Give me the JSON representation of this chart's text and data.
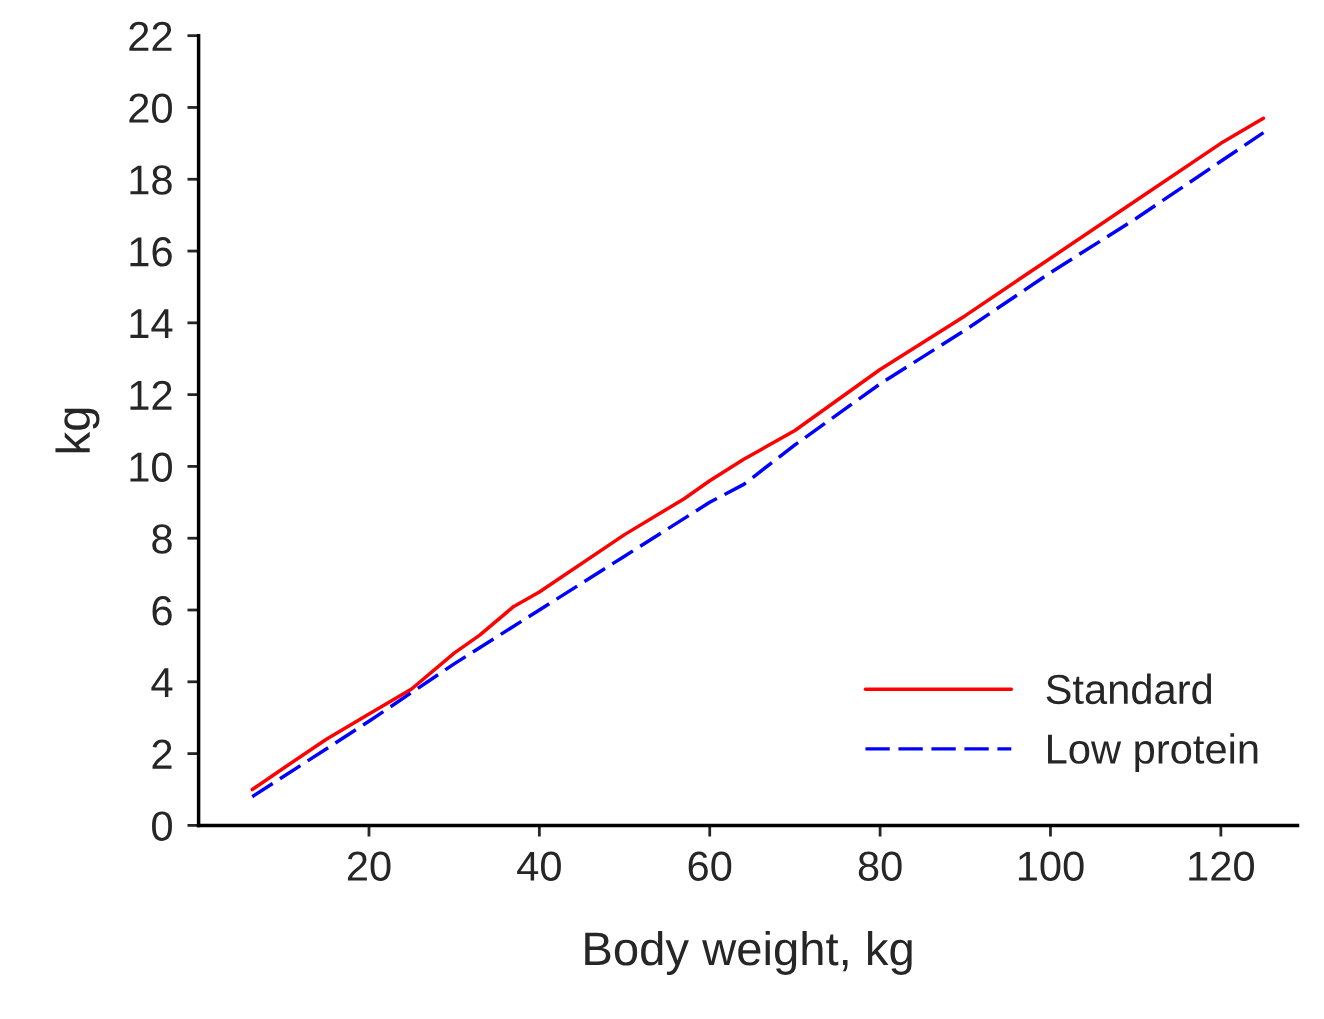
{
  "chart_data": {
    "type": "line",
    "xlabel": "Body weight, kg",
    "ylabel": "kg",
    "xlim": [
      0,
      129
    ],
    "xticks": [
      20,
      40,
      60,
      80,
      100,
      120
    ],
    "ylim": [
      0,
      22
    ],
    "yticks": [
      0,
      2,
      4,
      6,
      8,
      10,
      12,
      14,
      16,
      18,
      20,
      22
    ],
    "grid": false,
    "legend": "bottom right",
    "series": [
      {
        "name": "Standard",
        "color": "#ff0000",
        "line_style": "solid",
        "x": [
          6.3,
          10,
          15,
          20,
          25,
          30,
          33,
          37,
          40,
          50,
          57,
          60,
          64,
          70,
          80,
          90,
          100,
          110,
          120,
          125
        ],
        "values": [
          1.0,
          1.6,
          2.4,
          3.1,
          3.8,
          4.8,
          5.3,
          6.1,
          6.5,
          8.1,
          9.1,
          9.6,
          10.2,
          11.0,
          12.7,
          14.2,
          15.8,
          17.4,
          19.0,
          19.7
        ]
      },
      {
        "name": "Low protein",
        "color": "#0000ff",
        "line_style": "dashed",
        "x": [
          6.3,
          20,
          30,
          40,
          50,
          60,
          64,
          70,
          80,
          90,
          100,
          110,
          120,
          125
        ],
        "values": [
          0.8,
          2.9,
          4.5,
          6.0,
          7.5,
          9.0,
          9.5,
          10.6,
          12.3,
          13.8,
          15.4,
          16.9,
          18.5,
          19.3
        ]
      }
    ]
  }
}
